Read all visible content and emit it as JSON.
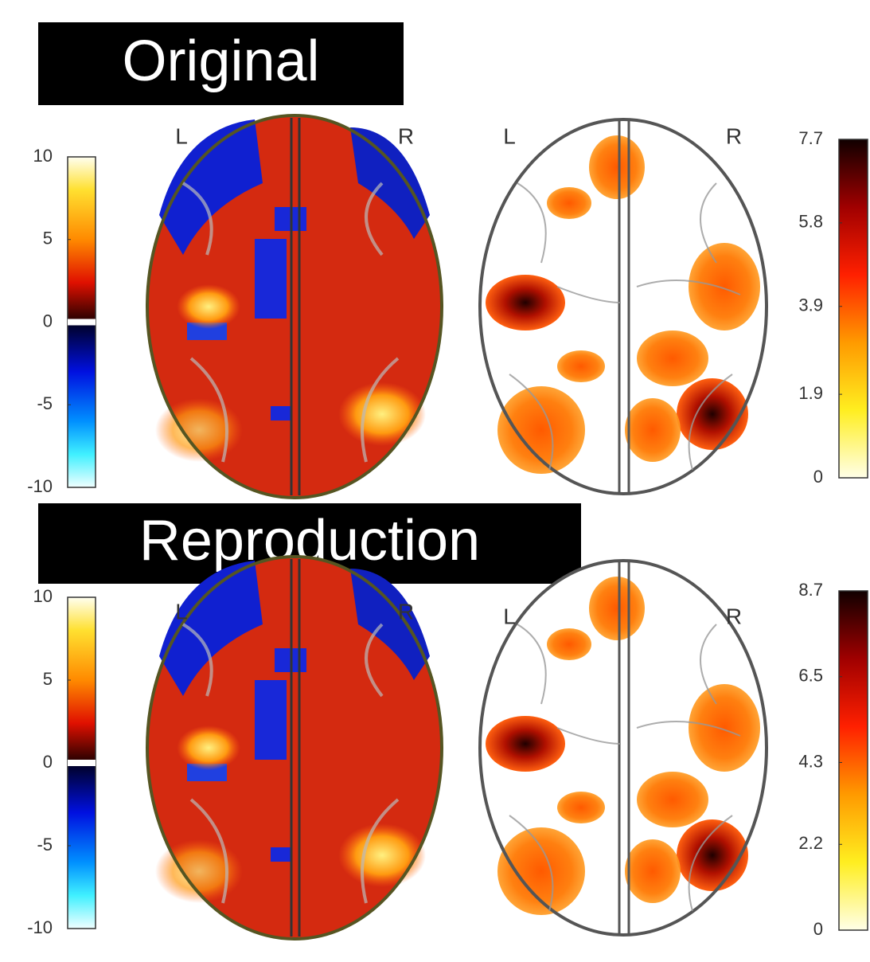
{
  "panels": [
    {
      "title": "Original",
      "left_label": "L",
      "right_label": "R",
      "signed_colorbar_ticks": [
        10,
        5,
        0,
        -5,
        -10
      ],
      "positive_colorbar_ticks": [
        7.7,
        5.8,
        3.9,
        1.9,
        0
      ]
    },
    {
      "title": "Reproduction",
      "left_label": "L",
      "right_label": "R",
      "signed_colorbar_ticks": [
        10,
        5,
        0,
        -5,
        -10
      ],
      "positive_colorbar_ticks": [
        8.7,
        6.5,
        4.3,
        2.2,
        0
      ]
    }
  ]
}
